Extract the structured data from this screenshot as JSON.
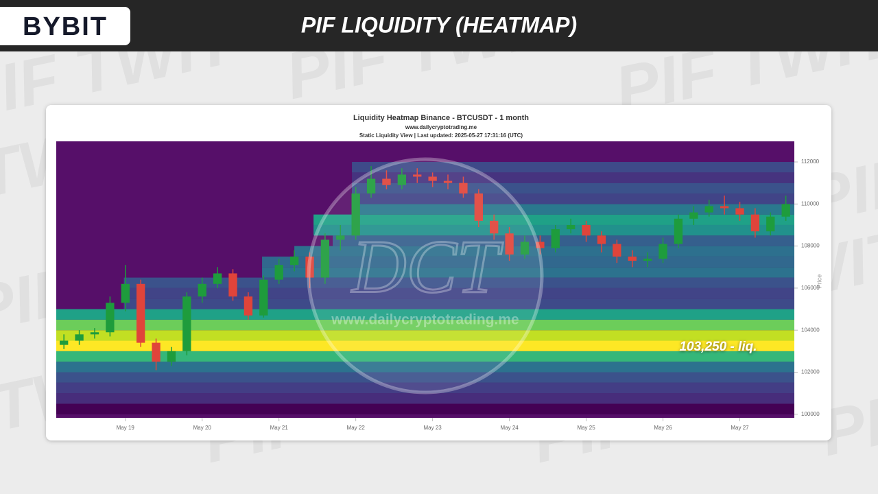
{
  "header": {
    "logo": "BYBIT",
    "title": "PIF LIQUIDITY (HEATMAP)"
  },
  "background_watermark": "PIF TWIT",
  "chart_data": {
    "type": "heatmap",
    "title": "Liquidity Heatmap Binance - BTCUSDT - 1 month",
    "subtitle": "www.dailycryptotrading.me",
    "note": "Static Liquidity View | Last updated: 2025-05-27 17:31:16 (UTC)",
    "y_label": "Price",
    "annotation": "103,250 - liq.",
    "watermark": {
      "logo": "DCT",
      "url": "www.dailycryptotrading.me"
    },
    "background": "#560f69",
    "xlim": [
      18.1,
      27.71
    ],
    "ylim": [
      99830,
      112980
    ],
    "xticks": [
      {
        "value": 19,
        "label": "May 19"
      },
      {
        "value": 20,
        "label": "May 20"
      },
      {
        "value": 21,
        "label": "May 21"
      },
      {
        "value": 22,
        "label": "May 22"
      },
      {
        "value": 23,
        "label": "May 23"
      },
      {
        "value": 24,
        "label": "May 24"
      },
      {
        "value": 25,
        "label": "May 25"
      },
      {
        "value": 26,
        "label": "May 26"
      },
      {
        "value": 27,
        "label": "May 27"
      }
    ],
    "yticks": [
      100000,
      102000,
      104000,
      106000,
      108000,
      110000,
      112000
    ],
    "bands": [
      {
        "low": 100000,
        "high": 100500,
        "start": 18.1,
        "color": "#440154"
      },
      {
        "low": 100500,
        "high": 101000,
        "start": 18.1,
        "color": "#472d7b"
      },
      {
        "low": 101000,
        "high": 101500,
        "start": 18.1,
        "color": "#433e85"
      },
      {
        "low": 101500,
        "high": 102000,
        "start": 18.1,
        "color": "#3b528b"
      },
      {
        "low": 102000,
        "high": 102500,
        "start": 18.1,
        "color": "#2c728e"
      },
      {
        "low": 102500,
        "high": 103000,
        "start": 18.1,
        "color": "#35b779"
      },
      {
        "low": 103000,
        "high": 103500,
        "start": 18.1,
        "color": "#fde725"
      },
      {
        "low": 103500,
        "high": 104000,
        "start": 18.1,
        "color": "#c2df23"
      },
      {
        "low": 104000,
        "high": 104500,
        "start": 18.1,
        "color": "#6ccd5a"
      },
      {
        "low": 104500,
        "high": 105000,
        "start": 18.1,
        "color": "#1fa187"
      },
      {
        "low": 105000,
        "high": 105500,
        "start": 18.98,
        "color": "#3e4a89"
      },
      {
        "low": 105500,
        "high": 106000,
        "start": 18.98,
        "color": "#414487"
      },
      {
        "low": 106000,
        "high": 106500,
        "start": 18.98,
        "color": "#3b528b"
      },
      {
        "low": 106500,
        "high": 107000,
        "start": 20.78,
        "color": "#2c728e"
      },
      {
        "low": 107000,
        "high": 107500,
        "start": 20.78,
        "color": "#31688e"
      },
      {
        "low": 107500,
        "high": 108000,
        "start": 21.2,
        "color": "#2d708e"
      },
      {
        "low": 108000,
        "high": 108500,
        "start": 21.7,
        "color": "#355f8d"
      },
      {
        "low": 108500,
        "high": 109000,
        "start": 21.45,
        "color": "#21918c"
      },
      {
        "low": 109000,
        "high": 109500,
        "start": 21.45,
        "color": "#1fa187"
      },
      {
        "low": 109500,
        "high": 110000,
        "start": 21.95,
        "color": "#2a788e"
      },
      {
        "low": 110000,
        "high": 110500,
        "start": 21.95,
        "color": "#414487"
      },
      {
        "low": 110500,
        "high": 111000,
        "start": 21.95,
        "color": "#3b528b"
      },
      {
        "low": 111000,
        "high": 111500,
        "start": 21.95,
        "color": "#46337f"
      },
      {
        "low": 111500,
        "high": 112000,
        "start": 21.95,
        "color": "#3e4a89"
      }
    ],
    "up_color": "#1e9c3c",
    "down_color": "#e0443a",
    "candles": {
      "x": [
        18.2,
        18.4,
        18.6,
        18.8,
        19.0,
        19.2,
        19.4,
        19.6,
        19.8,
        20.0,
        20.2,
        20.4,
        20.6,
        20.8,
        21.0,
        21.2,
        21.4,
        21.6,
        21.8,
        22.0,
        22.2,
        22.4,
        22.6,
        22.8,
        23.0,
        23.2,
        23.4,
        23.6,
        23.8,
        24.0,
        24.2,
        24.4,
        24.6,
        24.8,
        25.0,
        25.2,
        25.4,
        25.6,
        25.8,
        26.0,
        26.2,
        26.4,
        26.6,
        26.8,
        27.0,
        27.2,
        27.4,
        27.6
      ],
      "open": [
        103300,
        103500,
        103800,
        103900,
        105300,
        106200,
        103400,
        102500,
        103000,
        105600,
        106200,
        106700,
        105600,
        104700,
        106400,
        107100,
        107500,
        106500,
        108300,
        108500,
        110500,
        111200,
        110900,
        111400,
        111300,
        111100,
        111000,
        110500,
        109200,
        108600,
        107600,
        108200,
        107900,
        108800,
        109000,
        108500,
        108100,
        107500,
        107300,
        107400,
        108100,
        109300,
        109600,
        109900,
        109800,
        109500,
        108700,
        109400
      ],
      "high": [
        103800,
        104000,
        104100,
        105600,
        107100,
        106400,
        103600,
        103200,
        105800,
        106500,
        107000,
        106900,
        105800,
        106600,
        107400,
        107800,
        107700,
        108600,
        109000,
        110800,
        111800,
        111600,
        111700,
        111700,
        111500,
        111400,
        111300,
        110700,
        109500,
        108900,
        108500,
        108500,
        109000,
        109300,
        109200,
        108700,
        108300,
        107800,
        107700,
        108400,
        109500,
        109900,
        110200,
        110400,
        110100,
        109800,
        109600,
        110400
      ],
      "low": [
        103100,
        103300,
        103600,
        103700,
        104900,
        103200,
        102100,
        102300,
        102800,
        105300,
        106000,
        105400,
        104500,
        104600,
        106200,
        106800,
        106000,
        106200,
        107800,
        108300,
        110300,
        110700,
        110700,
        111000,
        110800,
        110700,
        110300,
        108900,
        108300,
        107300,
        107400,
        107600,
        107700,
        108600,
        108200,
        107700,
        107200,
        107000,
        107000,
        107200,
        107900,
        109000,
        109400,
        109500,
        109200,
        108400,
        108500,
        109200
      ],
      "close": [
        103500,
        103800,
        103900,
        105300,
        106200,
        103400,
        102500,
        103000,
        105600,
        106200,
        106700,
        105600,
        104700,
        106400,
        107100,
        107500,
        106500,
        108300,
        108500,
        110500,
        111200,
        110900,
        111400,
        111300,
        111100,
        111000,
        110500,
        109200,
        108600,
        107600,
        108200,
        107900,
        108800,
        109000,
        108500,
        108100,
        107500,
        107300,
        107400,
        108100,
        109300,
        109600,
        109900,
        109800,
        109500,
        108700,
        109400,
        110000
      ]
    }
  }
}
